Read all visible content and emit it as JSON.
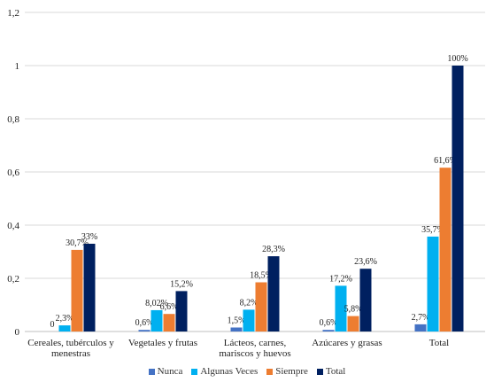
{
  "chart_data": {
    "type": "bar",
    "categories": [
      [
        "Cereales, tubérculos y",
        "menestras"
      ],
      [
        "Vegetales y frutas"
      ],
      [
        "Lácteos, carnes,",
        "mariscos y huevos"
      ],
      [
        "Azúcares y grasas"
      ],
      [
        "Total"
      ]
    ],
    "series": [
      {
        "name": "Nunca",
        "color": "#4472C4",
        "values": [
          0,
          0.006,
          0.015,
          0.006,
          0.027
        ],
        "labels": [
          "0",
          "0,6%",
          "1,5%",
          "0,6%",
          "2,7%"
        ]
      },
      {
        "name": "Algunas Veces",
        "color": "#00B0F0",
        "values": [
          0.023,
          0.0802,
          0.082,
          0.172,
          0.357
        ],
        "labels": [
          "2,3%",
          "8,02%",
          "8,2%",
          "17,2%",
          "35,7%"
        ]
      },
      {
        "name": "Siempre",
        "color": "#ED7D31",
        "values": [
          0.307,
          0.066,
          0.185,
          0.058,
          0.616
        ],
        "labels": [
          "30,7%",
          "6,6%",
          "18,5%",
          "5,8%",
          "61,6%"
        ]
      },
      {
        "name": "Total",
        "color": "#002060",
        "values": [
          0.33,
          0.152,
          0.283,
          0.236,
          1.0
        ],
        "labels": [
          "33%",
          "15,2%",
          "28,3%",
          "23,6%",
          "100%"
        ]
      }
    ],
    "y_ticks": [
      "0",
      "0,2",
      "0,4",
      "0,6",
      "0,8",
      "1",
      "1,2"
    ],
    "ylim": [
      0,
      1.2
    ],
    "grid": true,
    "legend_position": "bottom",
    "title": "",
    "xlabel": "",
    "ylabel": ""
  }
}
